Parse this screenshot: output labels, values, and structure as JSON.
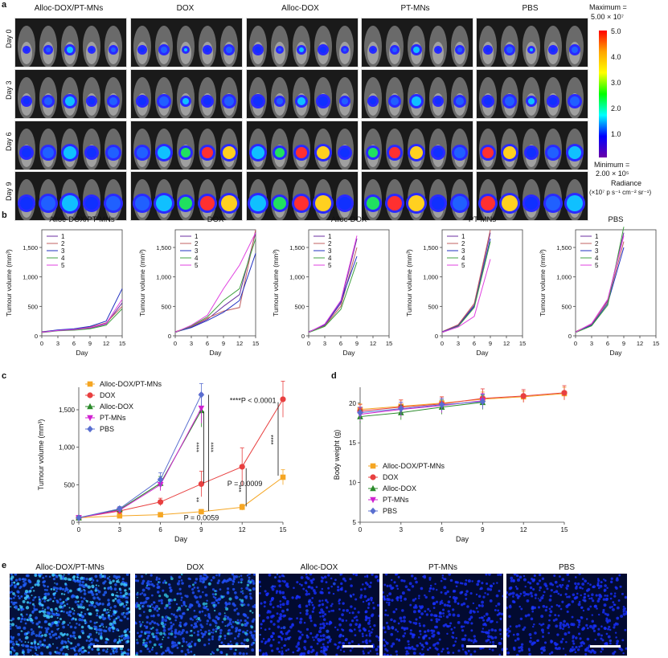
{
  "panel_letters": {
    "a": "a",
    "b": "b",
    "c": "c",
    "d": "d",
    "e": "e"
  },
  "groups": [
    "Alloc-DOX/PT-MNs",
    "DOX",
    "Alloc-DOX",
    "PT-MNs",
    "PBS"
  ],
  "days_rows": [
    "Day 0",
    "Day 3",
    "Day 6",
    "Day 9"
  ],
  "colorbar": {
    "max_label": "Maximum =",
    "max_value": "5.00 × 10⁷",
    "min_label": "Minimum =",
    "min_value": "2.00 × 10⁵",
    "ticks": [
      "5.0",
      "4.0",
      "3.0",
      "2.0",
      "1.0"
    ],
    "title": "Radiance",
    "units": "(×10⁷ p s⁻¹ cm⁻² sr⁻¹)",
    "colors": [
      "#ff0000",
      "#ffa500",
      "#ffff00",
      "#00ff00",
      "#00ffff",
      "#0000ff",
      "#6a00a8"
    ]
  },
  "chart_data": [
    {
      "type": "line",
      "panel": "b",
      "title": "Alloc-DOX/PT-MNs",
      "xlabel": "Day",
      "ylabel": "Tumour volume (mm³)",
      "xlim": [
        0,
        15
      ],
      "ylim": [
        0,
        1800
      ],
      "xticks": [
        0,
        3,
        6,
        9,
        12,
        15
      ],
      "yticks": [
        0,
        500,
        1000,
        1500
      ],
      "ytick_labels": [
        "0",
        "500",
        "1,000",
        "1,500"
      ],
      "x": [
        0,
        3,
        6,
        9,
        12,
        15
      ],
      "series": [
        {
          "name": "1",
          "color": "#6b2fa0",
          "values": [
            60,
            90,
            100,
            130,
            200,
            560
          ]
        },
        {
          "name": "2",
          "color": "#c06060",
          "values": [
            70,
            95,
            110,
            150,
            220,
            500
          ]
        },
        {
          "name": "3",
          "color": "#2030c0",
          "values": [
            65,
            100,
            120,
            160,
            250,
            800
          ]
        },
        {
          "name": "4",
          "color": "#40a040",
          "values": [
            55,
            85,
            95,
            120,
            180,
            460
          ]
        },
        {
          "name": "5",
          "color": "#e040e0",
          "values": [
            60,
            90,
            105,
            140,
            210,
            620
          ]
        }
      ]
    },
    {
      "type": "line",
      "panel": "b",
      "title": "DOX",
      "xlabel": "Day",
      "ylabel": "Tumour volume (mm³)",
      "xlim": [
        0,
        15
      ],
      "ylim": [
        0,
        1800
      ],
      "xticks": [
        0,
        3,
        6,
        9,
        12,
        15
      ],
      "yticks": [
        0,
        500,
        1000,
        1500
      ],
      "ytick_labels": [
        "0",
        "500",
        "1,000",
        "1,500"
      ],
      "x": [
        0,
        3,
        6,
        9,
        12,
        15
      ],
      "series": [
        {
          "name": "1",
          "color": "#6b2fa0",
          "values": [
            60,
            150,
            280,
            500,
            700,
            1750
          ]
        },
        {
          "name": "2",
          "color": "#c06060",
          "values": [
            70,
            160,
            300,
            420,
            480,
            1800
          ]
        },
        {
          "name": "3",
          "color": "#2030c0",
          "values": [
            65,
            140,
            260,
            400,
            600,
            1400
          ]
        },
        {
          "name": "4",
          "color": "#40a040",
          "values": [
            55,
            170,
            320,
            600,
            800,
            1650
          ]
        },
        {
          "name": "5",
          "color": "#e040e0",
          "values": [
            60,
            180,
            350,
            800,
            1200,
            1750
          ]
        }
      ]
    },
    {
      "type": "line",
      "panel": "b",
      "title": "Alloc-DOX",
      "xlabel": "Day",
      "ylabel": "Tumour volume (mm³)",
      "xlim": [
        0,
        15
      ],
      "ylim": [
        0,
        1800
      ],
      "xticks": [
        0,
        3,
        6,
        9,
        12,
        15
      ],
      "yticks": [
        0,
        500,
        1000,
        1500
      ],
      "ytick_labels": [
        "0",
        "500",
        "1,000",
        "1,500"
      ],
      "x": [
        0,
        3,
        6,
        9
      ],
      "series": [
        {
          "name": "1",
          "color": "#6b2fa0",
          "values": [
            60,
            180,
            550,
            1650
          ]
        },
        {
          "name": "2",
          "color": "#c06060",
          "values": [
            70,
            170,
            500,
            1500
          ]
        },
        {
          "name": "3",
          "color": "#2030c0",
          "values": [
            65,
            190,
            580,
            1350
          ]
        },
        {
          "name": "4",
          "color": "#40a040",
          "values": [
            55,
            160,
            450,
            1250
          ]
        },
        {
          "name": "5",
          "color": "#e040e0",
          "values": [
            60,
            200,
            600,
            1700
          ]
        }
      ]
    },
    {
      "type": "line",
      "panel": "b",
      "title": "PT-MNs",
      "xlabel": "Day",
      "ylabel": "Tumour volume (mm³)",
      "xlim": [
        0,
        15
      ],
      "ylim": [
        0,
        1800
      ],
      "xticks": [
        0,
        3,
        6,
        9,
        12,
        15
      ],
      "yticks": [
        0,
        500,
        1000,
        1500
      ],
      "ytick_labels": [
        "0",
        "500",
        "1,000",
        "1,500"
      ],
      "x": [
        0,
        3,
        6,
        9
      ],
      "series": [
        {
          "name": "1",
          "color": "#6b2fa0",
          "values": [
            60,
            180,
            520,
            1750
          ]
        },
        {
          "name": "2",
          "color": "#c06060",
          "values": [
            70,
            190,
            550,
            1800
          ]
        },
        {
          "name": "3",
          "color": "#2030c0",
          "values": [
            65,
            170,
            500,
            1650
          ]
        },
        {
          "name": "4",
          "color": "#40a040",
          "values": [
            55,
            160,
            480,
            1600
          ]
        },
        {
          "name": "5",
          "color": "#e040e0",
          "values": [
            60,
            150,
            330,
            1300
          ]
        }
      ]
    },
    {
      "type": "line",
      "panel": "b",
      "title": "PBS",
      "xlabel": "Day",
      "ylabel": "Tumour volume (mm³)",
      "xlim": [
        0,
        15
      ],
      "ylim": [
        0,
        1800
      ],
      "xticks": [
        0,
        3,
        6,
        9,
        12,
        15
      ],
      "yticks": [
        0,
        500,
        1000,
        1500
      ],
      "ytick_labels": [
        "0",
        "500",
        "1,000",
        "1,500"
      ],
      "x": [
        0,
        3,
        6,
        9
      ],
      "series": [
        {
          "name": "1",
          "color": "#6b2fa0",
          "values": [
            60,
            190,
            600,
            1750
          ]
        },
        {
          "name": "2",
          "color": "#c06060",
          "values": [
            70,
            200,
            580,
            1600
          ]
        },
        {
          "name": "3",
          "color": "#2030c0",
          "values": [
            65,
            180,
            550,
            1500
          ]
        },
        {
          "name": "4",
          "color": "#40a040",
          "values": [
            55,
            170,
            520,
            1850
          ]
        },
        {
          "name": "5",
          "color": "#e040e0",
          "values": [
            60,
            210,
            620,
            1700
          ]
        }
      ]
    },
    {
      "type": "line",
      "panel": "c",
      "xlabel": "Day",
      "ylabel": "Tumour volume (mm³)",
      "xlim": [
        0,
        15
      ],
      "ylim": [
        0,
        1800
      ],
      "xticks": [
        0,
        3,
        6,
        9,
        12,
        15
      ],
      "yticks": [
        0,
        500,
        1000,
        1500
      ],
      "ytick_labels": [
        "0",
        "500",
        "1,000",
        "1,500"
      ],
      "series": [
        {
          "name": "Alloc-DOX/PT-MNs",
          "color": "#f5a623",
          "marker": "square",
          "x": [
            0,
            3,
            6,
            9,
            12,
            15
          ],
          "values": [
            60,
            85,
            100,
            140,
            200,
            600
          ],
          "err": [
            15,
            20,
            20,
            30,
            40,
            100
          ]
        },
        {
          "name": "DOX",
          "color": "#e84040",
          "marker": "circle",
          "x": [
            0,
            3,
            6,
            9,
            12,
            15
          ],
          "values": [
            60,
            150,
            270,
            510,
            740,
            1640
          ],
          "err": [
            15,
            30,
            50,
            170,
            250,
            240
          ]
        },
        {
          "name": "Alloc-DOX",
          "color": "#2a8a2a",
          "marker": "triangle",
          "x": [
            0,
            3,
            6,
            9
          ],
          "values": [
            60,
            170,
            520,
            1490
          ],
          "err": [
            15,
            30,
            90,
            220
          ]
        },
        {
          "name": "PT-MNs",
          "color": "#d020d0",
          "marker": "triangle-down",
          "x": [
            0,
            3,
            6,
            9
          ],
          "values": [
            60,
            160,
            500,
            1520
          ],
          "err": [
            15,
            30,
            80,
            200
          ]
        },
        {
          "name": "PBS",
          "color": "#5a6fd0",
          "marker": "diamond",
          "x": [
            0,
            3,
            6,
            9
          ],
          "values": [
            60,
            180,
            570,
            1700
          ],
          "err": [
            15,
            30,
            90,
            150
          ]
        }
      ],
      "annotations": {
        "p1": "****P < 0.0001",
        "p2": "P = 0.0009",
        "p3": "P = 0.0059",
        "s1": "****",
        "s2": "****",
        "s3": "**",
        "s4": "***",
        "s5": "****"
      }
    },
    {
      "type": "line",
      "panel": "d",
      "xlabel": "Day",
      "ylabel": "Body weight (g)",
      "xlim": [
        0,
        15
      ],
      "ylim": [
        5,
        22
      ],
      "xticks": [
        0,
        3,
        6,
        9,
        12,
        15
      ],
      "yticks": [
        5,
        10,
        15,
        20
      ],
      "ytick_labels": [
        "5",
        "10",
        "15",
        "20"
      ],
      "series": [
        {
          "name": "Alloc-DOX/PT-MNs",
          "color": "#f5a623",
          "marker": "square",
          "x": [
            0,
            3,
            6,
            9,
            12,
            15
          ],
          "values": [
            19.2,
            19.6,
            20.0,
            20.5,
            20.8,
            21.2
          ],
          "err": [
            0.7,
            0.8,
            0.8,
            0.9,
            0.7,
            0.8
          ]
        },
        {
          "name": "DOX",
          "color": "#e84040",
          "marker": "circle",
          "x": [
            0,
            3,
            6,
            9,
            12,
            15
          ],
          "values": [
            19.0,
            19.5,
            19.9,
            20.6,
            20.9,
            21.3
          ],
          "err": [
            0.8,
            0.9,
            0.9,
            1.2,
            0.8,
            0.9
          ]
        },
        {
          "name": "Alloc-DOX",
          "color": "#2a8a2a",
          "marker": "triangle",
          "x": [
            0,
            3,
            6,
            9
          ],
          "values": [
            18.3,
            18.8,
            19.5,
            20.1
          ],
          "err": [
            0.8,
            0.9,
            0.9,
            0.9
          ]
        },
        {
          "name": "PT-MNs",
          "color": "#d020d0",
          "marker": "triangle-down",
          "x": [
            0,
            3,
            6,
            9
          ],
          "values": [
            18.6,
            19.2,
            19.7,
            20.3
          ],
          "err": [
            0.8,
            0.9,
            0.9,
            0.9
          ]
        },
        {
          "name": "PBS",
          "color": "#5a6fd0",
          "marker": "diamond",
          "x": [
            0,
            3,
            6,
            9
          ],
          "values": [
            18.8,
            19.3,
            19.8,
            20.2
          ],
          "err": [
            0.7,
            0.8,
            0.8,
            0.9
          ]
        }
      ]
    }
  ],
  "panel_e_labels": [
    "Alloc-DOX/PT-MNs",
    "DOX",
    "Alloc-DOX",
    "PT-MNs",
    "PBS"
  ]
}
